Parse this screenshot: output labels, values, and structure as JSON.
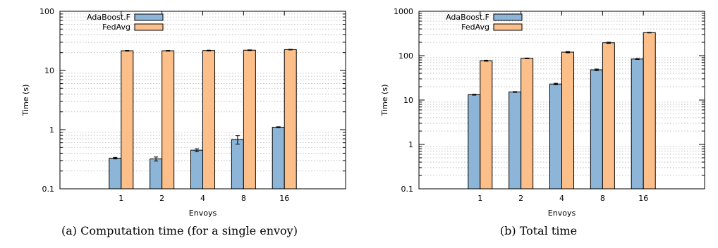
{
  "chart_data": [
    {
      "type": "bar",
      "caption": "(a) Computation time (for a single envoy)",
      "xlabel": "Envoys",
      "ylabel": "Time (s)",
      "yscale": "log",
      "ylim": [
        0.1,
        100
      ],
      "yticks": [
        0.1,
        1,
        10,
        100
      ],
      "ytick_labels": [
        "0.1",
        "1",
        "10",
        "100"
      ],
      "grid": "y minor dotted",
      "legend_position": "top-left",
      "categories": [
        "1",
        "2",
        "4",
        "8",
        "16"
      ],
      "series": [
        {
          "name": "AdaBoost.F",
          "color": "#8db5d7",
          "values": [
            0.33,
            0.32,
            0.45,
            0.68,
            1.1
          ],
          "errors": [
            0.01,
            0.025,
            0.025,
            0.11,
            0.02
          ]
        },
        {
          "name": "FedAvg",
          "color": "#fdbf89",
          "values": [
            21.5,
            21.5,
            21.7,
            22.0,
            22.5
          ],
          "errors": [
            0.3,
            0.3,
            0.3,
            0.3,
            0.3
          ]
        }
      ]
    },
    {
      "type": "bar",
      "caption": "(b) Total time",
      "xlabel": "Envoys",
      "ylabel": "Time (s)",
      "yscale": "log",
      "ylim": [
        0.1,
        1000
      ],
      "yticks": [
        0.1,
        1,
        10,
        100,
        1000
      ],
      "ytick_labels": [
        "0.1",
        "1",
        "10",
        "100",
        "1000"
      ],
      "grid": "y minor dotted",
      "legend_position": "top-left",
      "categories": [
        "1",
        "2",
        "4",
        "8",
        "16"
      ],
      "series": [
        {
          "name": "AdaBoost.F",
          "color": "#8db5d7",
          "values": [
            13.2,
            15.2,
            23.0,
            48.0,
            84.0
          ],
          "errors": [
            0.3,
            0.3,
            0.9,
            2.0,
            2.0
          ]
        },
        {
          "name": "FedAvg",
          "color": "#fdbf89",
          "values": [
            77.0,
            87.0,
            120.0,
            195.0,
            330.0
          ],
          "errors": [
            2.0,
            1.5,
            4.0,
            6.0,
            5.0
          ]
        }
      ]
    }
  ]
}
